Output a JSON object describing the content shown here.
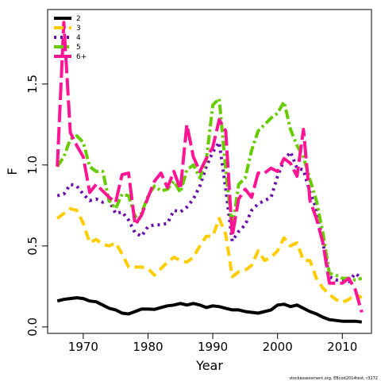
{
  "chart_data": {
    "type": "line",
    "xlabel": "Year",
    "ylabel": "F",
    "xlim": [
      1964.5,
      2014.5
    ],
    "ylim": [
      -0.04,
      1.96
    ],
    "xticks": [
      1970,
      1980,
      1990,
      2000,
      2010
    ],
    "yticks": [
      0.0,
      0.5,
      1.0,
      1.5
    ],
    "ytick_labels": [
      "0.0",
      "0.5",
      "1.0",
      "1.5"
    ],
    "legend_position": "top-left",
    "grid": false,
    "footnote": "stockassessment.org, EBcod2014test, r3272",
    "x": [
      1966,
      1967,
      1968,
      1969,
      1970,
      1971,
      1972,
      1973,
      1974,
      1975,
      1976,
      1977,
      1978,
      1979,
      1980,
      1981,
      1982,
      1983,
      1984,
      1985,
      1986,
      1987,
      1988,
      1989,
      1990,
      1991,
      1992,
      1993,
      1994,
      1995,
      1996,
      1997,
      1998,
      1999,
      2000,
      2001,
      2002,
      2003,
      2004,
      2005,
      2006,
      2007,
      2008,
      2009,
      2010,
      2011,
      2012,
      2013
    ],
    "series": [
      {
        "name": "2",
        "color": "#000000",
        "dash": "solid",
        "width": 4,
        "values": [
          0.16,
          0.17,
          0.175,
          0.18,
          0.175,
          0.16,
          0.155,
          0.135,
          0.115,
          0.105,
          0.085,
          0.08,
          0.095,
          0.11,
          0.11,
          0.108,
          0.12,
          0.13,
          0.135,
          0.145,
          0.135,
          0.145,
          0.135,
          0.12,
          0.13,
          0.125,
          0.115,
          0.105,
          0.105,
          0.095,
          0.09,
          0.085,
          0.095,
          0.105,
          0.135,
          0.14,
          0.125,
          0.135,
          0.115,
          0.095,
          0.08,
          0.06,
          0.045,
          0.04,
          0.035,
          0.035,
          0.035,
          0.03
        ]
      },
      {
        "name": "3",
        "color": "#ffcc00",
        "dash": "12 7",
        "width": 4,
        "values": [
          0.67,
          0.7,
          0.73,
          0.72,
          0.64,
          0.52,
          0.54,
          0.51,
          0.5,
          0.52,
          0.45,
          0.37,
          0.37,
          0.37,
          0.36,
          0.32,
          0.36,
          0.4,
          0.43,
          0.41,
          0.4,
          0.43,
          0.5,
          0.56,
          0.56,
          0.67,
          0.57,
          0.31,
          0.34,
          0.35,
          0.38,
          0.47,
          0.41,
          0.43,
          0.47,
          0.55,
          0.5,
          0.52,
          0.41,
          0.41,
          0.3,
          0.24,
          0.2,
          0.17,
          0.15,
          0.17,
          0.2,
          0.18
        ]
      },
      {
        "name": "4",
        "color": "#6a0dad",
        "dash": "3 5",
        "width": 4,
        "values": [
          0.81,
          0.82,
          0.88,
          0.87,
          0.82,
          0.78,
          0.79,
          0.77,
          0.78,
          0.7,
          0.71,
          0.66,
          0.58,
          0.56,
          0.62,
          0.63,
          0.63,
          0.64,
          0.72,
          0.71,
          0.74,
          0.79,
          0.87,
          0.99,
          1.08,
          1.14,
          0.85,
          0.53,
          0.59,
          0.63,
          0.72,
          0.76,
          0.78,
          0.8,
          0.93,
          1.03,
          1.08,
          0.98,
          0.97,
          0.83,
          0.73,
          0.52,
          0.31,
          0.29,
          0.29,
          0.28,
          0.33,
          0.3
        ]
      },
      {
        "name": "5",
        "color": "#66cc00",
        "dash": "12 4 3 4",
        "width": 4,
        "values": [
          0.99,
          1.05,
          1.16,
          1.18,
          1.14,
          0.99,
          0.96,
          0.96,
          0.78,
          0.73,
          0.82,
          0.81,
          0.68,
          0.7,
          0.81,
          0.87,
          0.84,
          0.85,
          0.9,
          0.83,
          0.97,
          1.0,
          0.92,
          1.03,
          1.37,
          1.41,
          0.97,
          0.61,
          0.88,
          0.92,
          1.09,
          1.21,
          1.25,
          1.29,
          1.32,
          1.39,
          1.22,
          1.12,
          1.05,
          0.91,
          0.78,
          0.58,
          0.33,
          0.32,
          0.3,
          0.3,
          0.29,
          0.3
        ]
      },
      {
        "name": "6+",
        "color": "#ff1493",
        "dash": "22 6",
        "width": 4,
        "values": [
          0.99,
          1.88,
          1.2,
          1.12,
          1.05,
          0.83,
          0.88,
          0.84,
          0.8,
          0.77,
          0.94,
          0.95,
          0.63,
          0.69,
          0.8,
          0.9,
          0.95,
          0.86,
          0.96,
          0.85,
          1.25,
          1.05,
          0.96,
          1.04,
          1.11,
          1.28,
          1.21,
          0.56,
          0.79,
          0.85,
          0.8,
          0.95,
          0.95,
          0.98,
          0.96,
          1.04,
          1.01,
          0.93,
          1.22,
          0.78,
          0.67,
          0.52,
          0.27,
          0.27,
          0.27,
          0.3,
          0.23,
          0.09
        ]
      }
    ]
  }
}
